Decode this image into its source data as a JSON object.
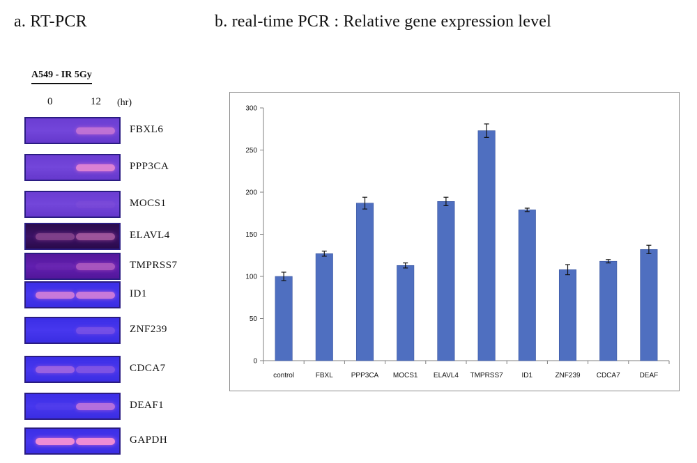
{
  "panel_a": {
    "title": "a. RT-PCR",
    "sample_label": "A549 - IR  5Gy",
    "time_points": [
      "0",
      "12"
    ],
    "time_unit": "(hr)",
    "genes": [
      {
        "name": "FBXL6",
        "lane0": 0.0,
        "lane12": 0.55
      },
      {
        "name": "PPP3CA",
        "lane0": 0.0,
        "lane12": 0.75
      },
      {
        "name": "MOCS1",
        "lane0": 0.0,
        "lane12": 0.05
      },
      {
        "name": "ELAVL4",
        "lane0": 0.35,
        "lane12": 0.5
      },
      {
        "name": "TMPRSS7",
        "lane0": 0.05,
        "lane12": 0.45
      },
      {
        "name": "ID1",
        "lane0": 0.7,
        "lane12": 0.7
      },
      {
        "name": "ZNF239",
        "lane0": 0.0,
        "lane12": 0.25
      },
      {
        "name": "CDCA7",
        "lane0": 0.45,
        "lane12": 0.3
      },
      {
        "name": "DEAF1",
        "lane0": 0.05,
        "lane12": 0.6
      },
      {
        "name": "GAPDH",
        "lane0": 0.9,
        "lane12": 0.9
      }
    ]
  },
  "panel_b": {
    "title": "b. real-time PCR : Relative gene expression level"
  },
  "colors": {
    "bar": "#4f6fc0",
    "bar_edge": "#3a559e",
    "error_bar": "#111111"
  },
  "chart_data": {
    "type": "bar",
    "title": "",
    "xlabel": "",
    "ylabel": "",
    "ylim": [
      0,
      300
    ],
    "yticks": [
      0,
      50,
      100,
      150,
      200,
      250,
      300
    ],
    "grid": false,
    "categories": [
      "control",
      "FBXL",
      "PPP3CA",
      "MOCS1",
      "ELAVL4",
      "TMPRSS7",
      "ID1",
      "ZNF239",
      "CDCA7",
      "DEAF"
    ],
    "values": [
      100,
      127,
      187,
      113,
      189,
      273,
      179,
      108,
      118,
      132
    ],
    "errors": [
      5,
      3,
      7,
      3,
      5,
      8,
      2,
      6,
      2,
      5
    ]
  }
}
